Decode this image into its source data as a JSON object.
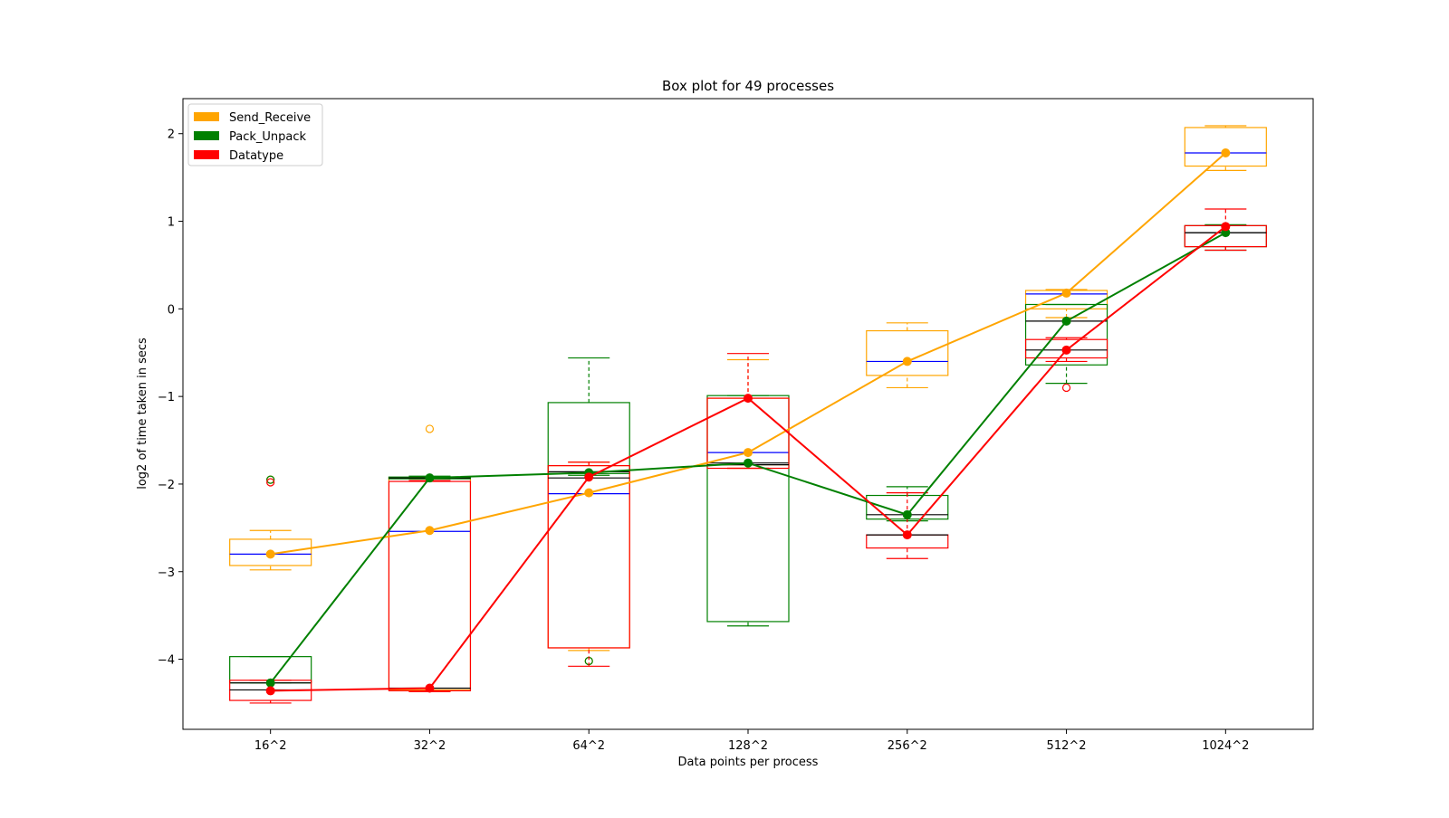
{
  "chart_data": {
    "type": "box",
    "title": "Box plot for 49 processes",
    "xlabel": "Data points per process",
    "ylabel": "log2 of time taken in secs",
    "categories": [
      "16^2",
      "32^2",
      "64^2",
      "128^2",
      "256^2",
      "512^2",
      "1024^2"
    ],
    "ylim": [
      -4.8,
      2.4
    ],
    "yticks": [
      -4,
      -3,
      -2,
      -1,
      0,
      1,
      2
    ],
    "ytick_labels": [
      "−4",
      "−3",
      "−2",
      "−1",
      "0",
      "1",
      "2"
    ],
    "grid": false,
    "legend_position": "upper-left",
    "series": [
      {
        "name": "Send_Receive",
        "color": "#ffa500",
        "means": [
          -2.8,
          -2.53,
          -2.1,
          -1.64,
          -0.6,
          0.18,
          1.78
        ],
        "boxes": [
          {
            "whislo": -2.98,
            "q1": -2.93,
            "med": -2.8,
            "q3": -2.63,
            "whishi": -2.53,
            "fliers": [
              -1.95
            ]
          },
          {
            "whislo": -4.37,
            "q1": -4.35,
            "med": -2.54,
            "q3": -1.93,
            "whishi": -1.92,
            "fliers": [
              -1.37
            ]
          },
          {
            "whislo": -3.9,
            "q1": -3.87,
            "med": -2.11,
            "q3": -1.79,
            "whishi": -1.75,
            "fliers": [
              -4.02
            ]
          },
          {
            "whislo": -1.82,
            "q1": -1.78,
            "med": -1.64,
            "q3": -1.02,
            "whishi": -0.58,
            "fliers": []
          },
          {
            "whislo": -0.9,
            "q1": -0.76,
            "med": -0.6,
            "q3": -0.25,
            "whishi": -0.16,
            "fliers": []
          },
          {
            "whislo": -0.1,
            "q1": 0.0,
            "med": 0.17,
            "q3": 0.21,
            "whishi": 0.22,
            "fliers": []
          },
          {
            "whislo": 1.58,
            "q1": 1.63,
            "med": 1.78,
            "q3": 2.07,
            "whishi": 2.09,
            "fliers": []
          }
        ]
      },
      {
        "name": "Pack_Unpack",
        "color": "#008000",
        "means": [
          -4.27,
          -1.93,
          -1.87,
          -1.76,
          -2.35,
          -0.14,
          0.87
        ],
        "boxes": [
          {
            "whislo": -4.27,
            "q1": -4.27,
            "med": -4.27,
            "q3": -3.97,
            "whishi": -3.97,
            "fliers": [
              -1.95
            ]
          },
          {
            "whislo": -1.94,
            "q1": -1.94,
            "med": -1.93,
            "q3": -1.92,
            "whishi": -1.91,
            "fliers": []
          },
          {
            "whislo": -1.9,
            "q1": -1.88,
            "med": -1.86,
            "q3": -1.07,
            "whishi": -0.56,
            "fliers": [
              -4.02
            ]
          },
          {
            "whislo": -3.62,
            "q1": -3.57,
            "med": -1.76,
            "q3": -0.99,
            "whishi": -0.99,
            "fliers": []
          },
          {
            "whislo": -2.42,
            "q1": -2.4,
            "med": -2.35,
            "q3": -2.13,
            "whishi": -2.03,
            "fliers": []
          },
          {
            "whislo": -0.85,
            "q1": -0.64,
            "med": -0.14,
            "q3": 0.05,
            "whishi": 0.05,
            "fliers": []
          },
          {
            "whislo": 0.67,
            "q1": 0.71,
            "med": 0.87,
            "q3": 0.95,
            "whishi": 0.96,
            "fliers": []
          }
        ]
      },
      {
        "name": "Datatype",
        "color": "#ff0000",
        "means": [
          -4.36,
          -4.33,
          -1.92,
          -1.02,
          -2.58,
          -0.47,
          0.94
        ],
        "boxes": [
          {
            "whislo": -4.5,
            "q1": -4.47,
            "med": -4.35,
            "q3": -4.24,
            "whishi": -4.24,
            "fliers": [
              -1.98
            ]
          },
          {
            "whislo": -4.37,
            "q1": -4.36,
            "med": -4.33,
            "q3": -1.97,
            "whishi": -1.96,
            "fliers": []
          },
          {
            "whislo": -4.08,
            "q1": -3.87,
            "med": -1.93,
            "q3": -1.79,
            "whishi": -1.75,
            "fliers": []
          },
          {
            "whislo": -1.82,
            "q1": -1.82,
            "med": -1.78,
            "q3": -1.02,
            "whishi": -0.51,
            "fliers": []
          },
          {
            "whislo": -2.85,
            "q1": -2.73,
            "med": -2.58,
            "q3": -2.58,
            "whishi": -2.1,
            "fliers": []
          },
          {
            "whislo": -0.6,
            "q1": -0.56,
            "med": -0.47,
            "q3": -0.35,
            "whishi": -0.33,
            "fliers": [
              -0.9
            ]
          },
          {
            "whislo": 0.67,
            "q1": 0.71,
            "med": 0.87,
            "q3": 0.95,
            "whishi": 1.14,
            "fliers": []
          }
        ]
      }
    ]
  }
}
